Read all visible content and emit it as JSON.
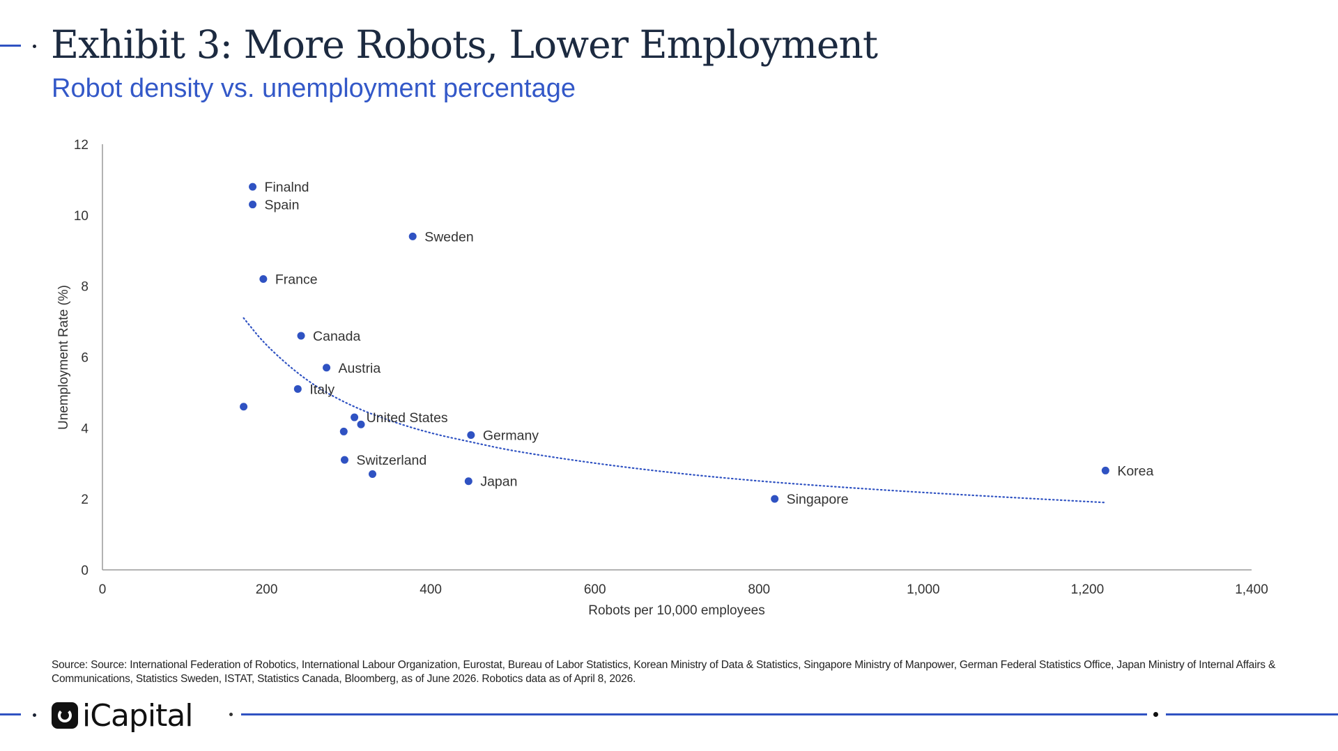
{
  "header": {
    "title": "Exhibit 3: More Robots, Lower Employment",
    "subtitle": "Robot density vs. unemployment percentage"
  },
  "footer": {
    "source": "Source: Source: International Federation of Robotics, International Labour Organization, Eurostat, Bureau of Labor Statistics, Korean Ministry of Data & Statistics, Singapore Ministry of Manpower, German Federal Statistics Office, Japan Ministry of Internal Affairs & Communications, Statistics Sweden, ISTAT, Statistics Canada, Bloomberg, as of June 2026. Robotics data as of April 8, 2026.",
    "logo_text": "iCapital"
  },
  "colors": {
    "point": "#2f52c2",
    "trend": "#2f52c2",
    "title": "#1c2a40",
    "subtitle": "#3358c8",
    "accent": "#2f52c2"
  },
  "chart_data": {
    "type": "scatter",
    "xlabel": "Robots per 10,000 employees",
    "ylabel": "Unemployment Rate (%)",
    "xlim": [
      0,
      1400
    ],
    "ylim": [
      0,
      12
    ],
    "xticks": [
      0,
      200,
      400,
      600,
      800,
      1000,
      1200,
      1400
    ],
    "xtick_labels": [
      "0",
      "200",
      "400",
      "600",
      "800",
      "1,000",
      "1,200",
      "1,400"
    ],
    "yticks": [
      0,
      2,
      4,
      6,
      8,
      10,
      12
    ],
    "ytick_labels": [
      "0",
      "2",
      "4",
      "6",
      "8",
      "10",
      "12"
    ],
    "grid": false,
    "points": [
      {
        "label": "Finalnd",
        "x": 183,
        "y": 10.8
      },
      {
        "label": "Spain",
        "x": 183,
        "y": 10.3
      },
      {
        "label": "Sweden",
        "x": 378,
        "y": 9.4
      },
      {
        "label": "France",
        "x": 196,
        "y": 8.2
      },
      {
        "label": "Canada",
        "x": 242,
        "y": 6.6
      },
      {
        "label": "Austria",
        "x": 273,
        "y": 5.7
      },
      {
        "label": "Italy",
        "x": 238,
        "y": 5.1
      },
      {
        "label": "",
        "x": 172,
        "y": 4.6
      },
      {
        "label": "United States",
        "x": 307,
        "y": 4.3
      },
      {
        "label": "",
        "x": 315,
        "y": 4.1
      },
      {
        "label": "",
        "x": 294,
        "y": 3.9
      },
      {
        "label": "Germany",
        "x": 449,
        "y": 3.8
      },
      {
        "label": "Switzerland",
        "x": 295,
        "y": 3.1
      },
      {
        "label": "",
        "x": 329,
        "y": 2.7
      },
      {
        "label": "Japan",
        "x": 446,
        "y": 2.5
      },
      {
        "label": "Singapore",
        "x": 819,
        "y": 2.0
      },
      {
        "label": "Korea",
        "x": 1222,
        "y": 2.8
      }
    ],
    "trendline": {
      "style": "dotted",
      "points": [
        [
          172,
          7.1
        ],
        [
          200,
          6.3
        ],
        [
          250,
          5.3
        ],
        [
          300,
          4.65
        ],
        [
          350,
          4.2
        ],
        [
          400,
          3.85
        ],
        [
          450,
          3.6
        ],
        [
          500,
          3.35
        ],
        [
          600,
          3.0
        ],
        [
          700,
          2.72
        ],
        [
          800,
          2.5
        ],
        [
          900,
          2.33
        ],
        [
          1000,
          2.18
        ],
        [
          1100,
          2.05
        ],
        [
          1220,
          1.9
        ]
      ]
    }
  }
}
